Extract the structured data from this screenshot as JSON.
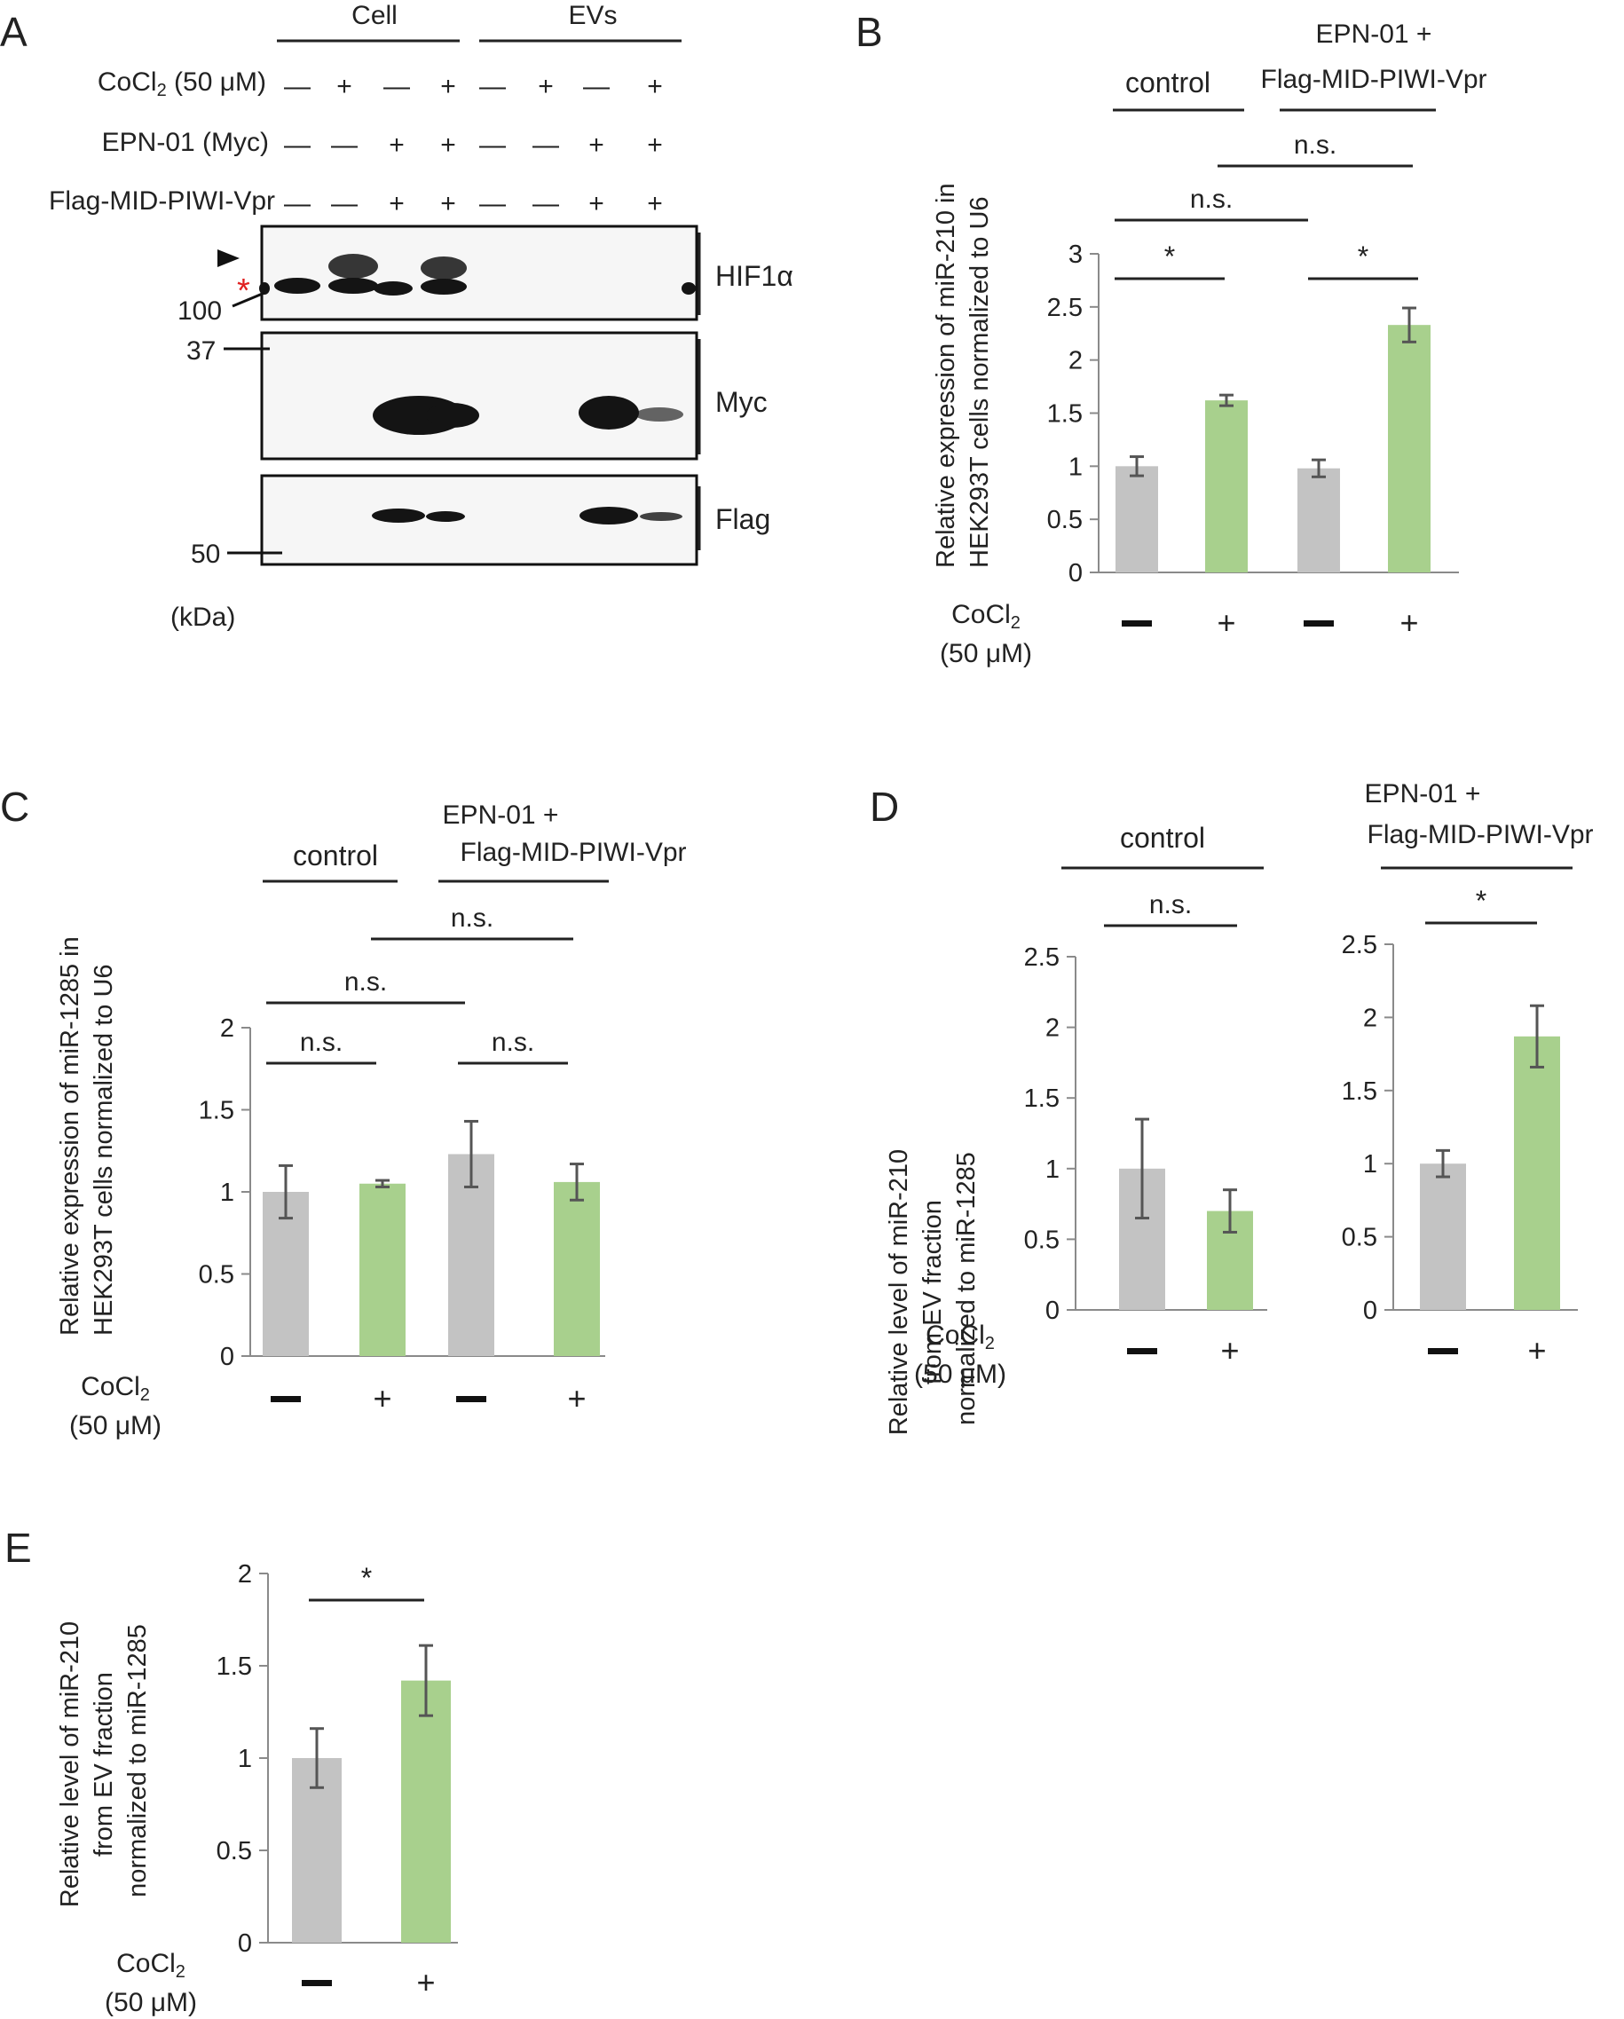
{
  "colors": {
    "control_bar": "#c3c3c3",
    "treated_bar": "#a8d08d",
    "asterisk_red": "#e02020",
    "blot_bg": "#f6f6f6",
    "band": "#141414"
  },
  "panelA": {
    "letter": "A",
    "group_cell": "Cell",
    "group_evs": "EVs",
    "row_labels": {
      "cocl2": "CoCl",
      "cocl2_sub": "2",
      "cocl2_conc": " (50 μM)",
      "epn": "EPN-01 (Myc)",
      "flag": "Flag-MID-PIWI-Vpr"
    },
    "lanes": {
      "cocl2": [
        "—",
        "+",
        "—",
        "+",
        "—",
        "+",
        "—",
        "+"
      ],
      "epn": [
        "—",
        "—",
        "+",
        "+",
        "—",
        "—",
        "+",
        "+"
      ],
      "flag": [
        "—",
        "—",
        "+",
        "+",
        "—",
        "—",
        "+",
        "+"
      ]
    },
    "blot_labels": [
      "HIF1α",
      "Myc",
      "Flag"
    ],
    "markers": [
      "100",
      "37",
      "50"
    ],
    "unit": "(kDa)",
    "asterisk": "*"
  },
  "chart_data": [
    {
      "id": "B",
      "type": "bar",
      "title": "",
      "ylabel": "Relative expression of miR-210 in HEK293T cells normalized to U6",
      "ylim": [
        0,
        3
      ],
      "yticks": [
        0,
        0.5,
        1,
        1.5,
        2,
        2.5,
        3
      ],
      "categories": [
        "—",
        "+",
        "—",
        "+"
      ],
      "xlabel": "CoCl2 (50 μM)",
      "groups": [
        "control",
        "EPN-01 + Flag-MID-PIWI-Vpr"
      ],
      "values": [
        1.0,
        1.62,
        0.98,
        2.33
      ],
      "errors": [
        0.09,
        0.05,
        0.08,
        0.16
      ],
      "significance": [
        {
          "bars": [
            0,
            1
          ],
          "label": "*"
        },
        {
          "bars": [
            2,
            3
          ],
          "label": "*"
        },
        {
          "bars": [
            0,
            2
          ],
          "label": "n.s."
        },
        {
          "bars": [
            1,
            3
          ],
          "label": "n.s."
        }
      ]
    },
    {
      "id": "C",
      "type": "bar",
      "ylabel": "Relative expression of miR-1285 in HEK293T cells normalized to U6",
      "ylim": [
        0,
        2
      ],
      "yticks": [
        0,
        0.5,
        1,
        1.5,
        2
      ],
      "categories": [
        "—",
        "+",
        "—",
        "+"
      ],
      "xlabel": "CoCl2 (50 μM)",
      "groups": [
        "control",
        "EPN-01 + Flag-MID-PIWI-Vpr"
      ],
      "values": [
        1.0,
        1.05,
        1.23,
        1.06
      ],
      "errors": [
        0.16,
        0.02,
        0.2,
        0.11
      ],
      "significance": [
        {
          "bars": [
            0,
            1
          ],
          "label": "n.s."
        },
        {
          "bars": [
            2,
            3
          ],
          "label": "n.s."
        },
        {
          "bars": [
            0,
            2
          ],
          "label": "n.s."
        },
        {
          "bars": [
            1,
            3
          ],
          "label": "n.s."
        }
      ]
    },
    {
      "id": "D-control",
      "type": "bar",
      "ylabel": "Relative level of miR-210 from EV fraction normalized to miR-1285",
      "ylim": [
        0,
        2.5
      ],
      "yticks": [
        0,
        0.5,
        1,
        1.5,
        2,
        2.5
      ],
      "categories": [
        "—",
        "+"
      ],
      "xlabel": "CoCl2 (50 μM)",
      "group": "control",
      "values": [
        1.0,
        0.7
      ],
      "errors": [
        0.35,
        0.15
      ],
      "significance": [
        {
          "bars": [
            0,
            1
          ],
          "label": "n.s."
        }
      ]
    },
    {
      "id": "D-epn",
      "type": "bar",
      "ylim": [
        0,
        2.5
      ],
      "yticks": [
        0,
        0.5,
        1,
        1.5,
        2,
        2.5
      ],
      "categories": [
        "—",
        "+"
      ],
      "group": "EPN-01 + Flag-MID-PIWI-Vpr",
      "values": [
        1.0,
        1.87
      ],
      "errors": [
        0.09,
        0.21
      ],
      "significance": [
        {
          "bars": [
            0,
            1
          ],
          "label": "*"
        }
      ]
    },
    {
      "id": "E",
      "type": "bar",
      "ylabel": "Relative level of miR-210 from EV fraction normalized to miR-1285",
      "ylim": [
        0,
        2
      ],
      "yticks": [
        0,
        0.5,
        1,
        1.5,
        2
      ],
      "categories": [
        "—",
        "+"
      ],
      "xlabel": "CoCl2 (50 μM)",
      "values": [
        1.0,
        1.42
      ],
      "errors": [
        0.16,
        0.19
      ],
      "significance": [
        {
          "bars": [
            0,
            1
          ],
          "label": "*"
        }
      ]
    }
  ],
  "labels": {
    "B": {
      "letter": "B",
      "ylabel_line1": "Relative expression of miR-210 in",
      "ylabel_line2": "HEK293T cells normalized to U6",
      "group1": "control",
      "group2_line1": "EPN-01 +",
      "group2_line2": "Flag-MID-PIWI-Vpr"
    },
    "C": {
      "letter": "C",
      "ylabel_line1": "Relative expression of miR-1285 in",
      "ylabel_line2": "HEK293T cells normalized to  U6",
      "group1": "control",
      "group2_line1": "EPN-01 +",
      "group2_line2": "Flag-MID-PIWI-Vpr"
    },
    "D": {
      "letter": "D",
      "ylabel_line1": "Relative level of miR-210",
      "ylabel_line2": "from EV fraction",
      "ylabel_line3": "normalized to miR-1285",
      "group1": "control",
      "group2_line1": "EPN-01 +",
      "group2_line2": "Flag-MID-PIWI-Vpr"
    },
    "E": {
      "letter": "E",
      "ylabel_line1": "Relative level of miR-210",
      "ylabel_line2": "from EV fraction",
      "ylabel_line3": "normalized to miR-1285"
    },
    "cocl2_main": "CoCl",
    "cocl2_sub": "2",
    "cocl2_conc": "(50 μM)"
  }
}
